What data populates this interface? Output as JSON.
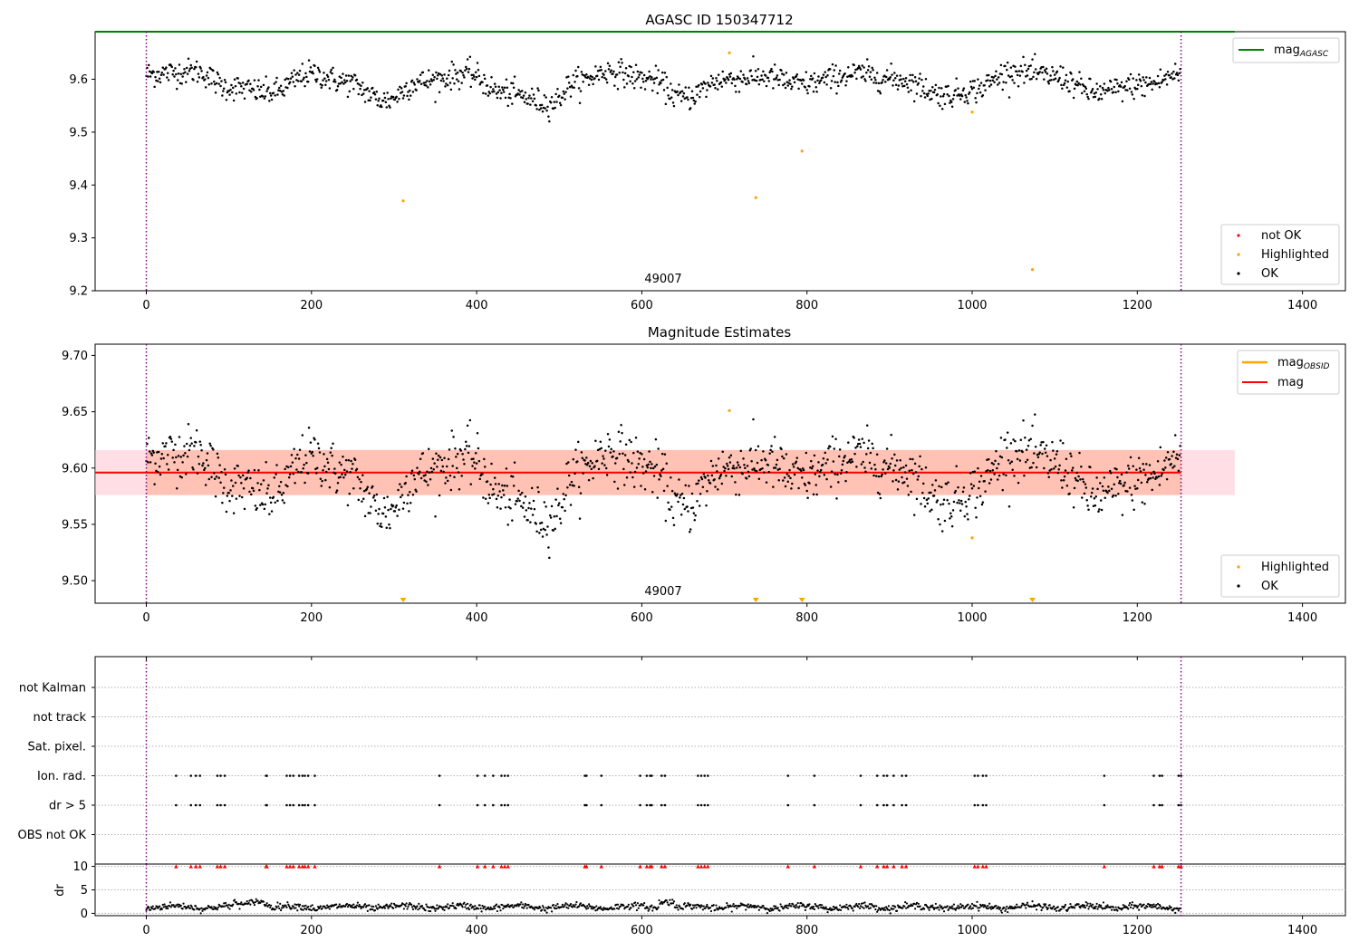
{
  "chart_data": [
    {
      "type": "scatter",
      "title": "AGASC ID 150347712",
      "xlim": [
        -62,
        1452
      ],
      "ylim": [
        9.2,
        9.69
      ],
      "xticks": [
        0,
        200,
        400,
        600,
        800,
        1000,
        1200,
        1400
      ],
      "yticks": [
        9.2,
        9.3,
        9.4,
        9.5,
        9.6
      ],
      "ytick_decimals": 1,
      "obs_boundaries": [
        0,
        1253
      ],
      "obsid_annotation": {
        "text": "49007",
        "x": 624
      },
      "lines": [
        {
          "name": "mag_AGASC",
          "label_main": "mag",
          "label_sub": "AGASC",
          "y": 9.69,
          "x_range": [
            -62,
            1318
          ],
          "color": "#008000"
        }
      ],
      "legend_lines": {
        "position": "upper right",
        "entries": [
          {
            "label_main": "mag",
            "label_sub": "AGASC",
            "color": "#008000"
          }
        ]
      },
      "legend_points": {
        "position": "lower right",
        "entries": [
          {
            "label": "not OK",
            "color": "#ff0000"
          },
          {
            "label": "Highlighted",
            "color": "#ffa500"
          },
          {
            "label": "OK",
            "color": "#000000"
          }
        ]
      },
      "curve": {
        "n": 1253,
        "base": 9.595,
        "noise": 0.012,
        "segments": [
          [
            0,
            9.61
          ],
          [
            60,
            9.615
          ],
          [
            100,
            9.585
          ],
          [
            150,
            9.575
          ],
          [
            200,
            9.61
          ],
          [
            240,
            9.595
          ],
          [
            290,
            9.56
          ],
          [
            330,
            9.595
          ],
          [
            390,
            9.61
          ],
          [
            430,
            9.575
          ],
          [
            490,
            9.555
          ],
          [
            520,
            9.595
          ],
          [
            560,
            9.615
          ],
          [
            610,
            9.6
          ],
          [
            650,
            9.565
          ],
          [
            700,
            9.6
          ],
          [
            750,
            9.605
          ],
          [
            790,
            9.59
          ],
          [
            860,
            9.61
          ],
          [
            910,
            9.6
          ],
          [
            970,
            9.57
          ],
          [
            1000,
            9.58
          ],
          [
            1050,
            9.615
          ],
          [
            1100,
            9.605
          ],
          [
            1150,
            9.575
          ],
          [
            1210,
            9.59
          ],
          [
            1253,
            9.61
          ]
        ]
      },
      "highlighted": [
        [
          311,
          9.37
        ],
        [
          706,
          9.65
        ],
        [
          738,
          9.376
        ],
        [
          794,
          9.464
        ],
        [
          1000,
          9.538
        ],
        [
          1073,
          9.24
        ]
      ],
      "series": [
        {
          "name": "OK",
          "color": "#000000"
        },
        {
          "name": "Highlighted",
          "color": "#ffa500"
        }
      ]
    },
    {
      "type": "scatter",
      "title": "Magnitude Estimates",
      "xlim": [
        -62,
        1452
      ],
      "ylim": [
        9.48,
        9.71
      ],
      "xticks": [
        0,
        200,
        400,
        600,
        800,
        1000,
        1200,
        1400
      ],
      "yticks": [
        9.5,
        9.55,
        9.6,
        9.65,
        9.7
      ],
      "ytick_decimals": 2,
      "obs_boundaries": [
        0,
        1253
      ],
      "obsid_annotation": {
        "text": "49007",
        "x": 624
      },
      "mag_band": {
        "y_low": 9.576,
        "y_high": 9.616,
        "x_range": [
          -62,
          1318
        ],
        "center": 9.596
      },
      "lines": [
        {
          "name": "mag",
          "y": 9.596,
          "x_range": [
            -62,
            1253
          ],
          "color": "#ff0000"
        }
      ],
      "legend_lines": {
        "position": "upper right",
        "entries": [
          {
            "label_main": "mag",
            "label_sub": "OBSID",
            "color": "#ffa500"
          },
          {
            "label_main": "mag",
            "label_sub": "",
            "color": "#ff0000"
          }
        ]
      },
      "legend_points": {
        "position": "lower right",
        "entries": [
          {
            "label": "Highlighted",
            "color": "#ffa500"
          },
          {
            "label": "OK",
            "color": "#000000"
          }
        ]
      },
      "highlighted_in_range": [
        [
          706,
          9.651
        ],
        [
          1000,
          9.538
        ]
      ],
      "highlighted_below_range_x": [
        311,
        738,
        794,
        1073
      ],
      "series": [
        {
          "name": "OK",
          "color": "#000000"
        },
        {
          "name": "Highlighted",
          "color": "#ffa500"
        }
      ]
    },
    {
      "type": "scatter",
      "xlim": [
        -62,
        1452
      ],
      "obs_boundaries": [
        0,
        1253
      ],
      "flag_rows": [
        "not Kalman",
        "not track",
        "Sat. pixel.",
        "Ion. rad.",
        "dr > 5",
        "OBS not OK"
      ],
      "flagged_x": [
        36,
        54,
        60,
        65,
        86,
        90,
        95,
        145,
        146,
        170,
        174,
        178,
        185,
        189,
        192,
        196,
        204,
        355,
        401,
        410,
        420,
        430,
        434,
        438,
        531,
        533,
        551,
        598,
        606,
        610,
        612,
        624,
        628,
        668,
        672,
        676,
        680,
        777,
        809,
        865,
        885,
        893,
        897,
        905,
        915,
        920,
        1003,
        1007,
        1013,
        1017,
        1160,
        1220,
        1227,
        1230,
        1250,
        1253
      ],
      "flagged_rows": [
        "Ion. rad.",
        "dr > 5"
      ],
      "xticks_top": [
        0,
        200,
        400,
        600,
        800,
        1000,
        1200,
        1400
      ]
    },
    {
      "type": "scatter",
      "xlim": [
        -62,
        1452
      ],
      "ylim": [
        -0.5,
        10.5
      ],
      "ylabel": "dr",
      "yticks": [
        0,
        5,
        10
      ],
      "xticks": [
        0,
        200,
        400,
        600,
        800,
        1000,
        1200,
        1400
      ],
      "obs_boundaries": [
        0,
        1253
      ],
      "flag_marker_y": 10,
      "flag_marker_color": "#ff0000",
      "dr_series": {
        "color": "#000000",
        "n": 1253
      }
    }
  ]
}
